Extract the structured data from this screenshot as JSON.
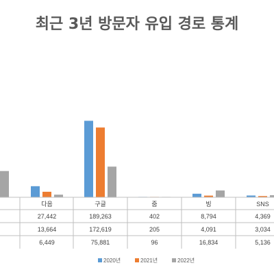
{
  "chart_data": {
    "type": "bar",
    "title": "최근 3년 방문자 유입 경로 통계",
    "categories": [
      "",
      "다음",
      "구글",
      "줌",
      "빙",
      "SNS"
    ],
    "series": [
      {
        "name": "2020년",
        "color": "#5B9BD5",
        "values": [
          null,
          27442,
          189263,
          402,
          8794,
          4369
        ]
      },
      {
        "name": "2021년",
        "color": "#ED7D31",
        "values": [
          null,
          13664,
          172619,
          205,
          4091,
          3034
        ]
      },
      {
        "name": "2022년",
        "color": "#A5A5A5",
        "values": [
          65000,
          6449,
          75881,
          96,
          16834,
          5136
        ]
      }
    ],
    "table_rows": [
      [
        "",
        "27,442",
        "189,263",
        "402",
        "8,794",
        "4,369"
      ],
      [
        "",
        "13,664",
        "172,619",
        "205",
        "4,091",
        "3,034"
      ],
      [
        "",
        "6,449",
        "75,881",
        "96",
        "16,834",
        "5,136"
      ]
    ],
    "ylim": [
      0,
      200000
    ],
    "grid": false,
    "legend_position": "bottom"
  }
}
